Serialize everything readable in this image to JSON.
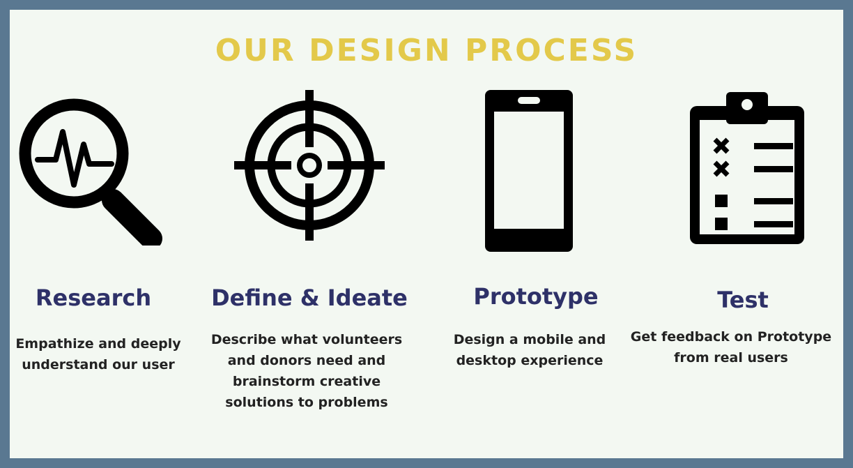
{
  "title": "OUR DESIGN PROCESS",
  "colors": {
    "background_frame": "#5a7891",
    "panel": "#f3f8f2",
    "title": "#e3c94a",
    "heading": "#2e3168",
    "text": "#222222",
    "icon": "#000000"
  },
  "steps": [
    {
      "icon": "magnifier-pulse-icon",
      "heading": "Research",
      "description": "Empathize and deeply understand our user"
    },
    {
      "icon": "crosshair-target-icon",
      "heading": "Define & Ideate",
      "description": "Describe what volunteers and donors need and brainstorm creative solutions to problems"
    },
    {
      "icon": "mobile-phone-icon",
      "heading": "Prototype",
      "description": "Design a mobile and desktop experience"
    },
    {
      "icon": "clipboard-checklist-icon",
      "heading": "Test",
      "description": "Get feedback on Prototype from real users"
    }
  ]
}
